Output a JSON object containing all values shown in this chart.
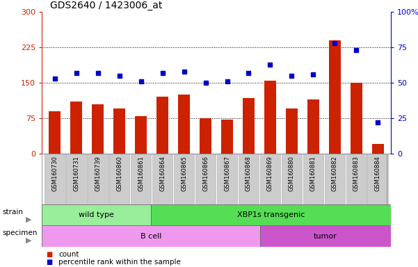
{
  "title": "GDS2640 / 1423006_at",
  "samples": [
    "GSM160730",
    "GSM160731",
    "GSM160739",
    "GSM160860",
    "GSM160861",
    "GSM160864",
    "GSM160865",
    "GSM160866",
    "GSM160867",
    "GSM160868",
    "GSM160869",
    "GSM160880",
    "GSM160881",
    "GSM160882",
    "GSM160883",
    "GSM160884"
  ],
  "counts": [
    90,
    110,
    105,
    95,
    80,
    120,
    125,
    75,
    72,
    118,
    155,
    95,
    115,
    240,
    150,
    20
  ],
  "percentiles": [
    53,
    57,
    57,
    55,
    51,
    57,
    58,
    50,
    51,
    57,
    63,
    55,
    56,
    78,
    73,
    22
  ],
  "strain_groups": [
    {
      "label": "wild type",
      "start": 0,
      "end": 5,
      "color": "#99ee99"
    },
    {
      "label": "XBP1s transgenic",
      "start": 5,
      "end": 16,
      "color": "#55dd55"
    }
  ],
  "specimen_groups": [
    {
      "label": "B cell",
      "start": 0,
      "end": 10,
      "color": "#ee99ee"
    },
    {
      "label": "tumor",
      "start": 10,
      "end": 16,
      "color": "#cc55cc"
    }
  ],
  "bar_color": "#cc2200",
  "dot_color": "#0000cc",
  "left_ylim": [
    0,
    300
  ],
  "right_ylim": [
    0,
    100
  ],
  "left_yticks": [
    0,
    75,
    150,
    225,
    300
  ],
  "right_yticks": [
    0,
    25,
    50,
    75,
    100
  ],
  "right_yticklabels": [
    "0",
    "25",
    "50",
    "75",
    "100%"
  ],
  "hlines": [
    75,
    150,
    225
  ],
  "background_color": "#ffffff",
  "tick_bg_color": "#cccccc"
}
